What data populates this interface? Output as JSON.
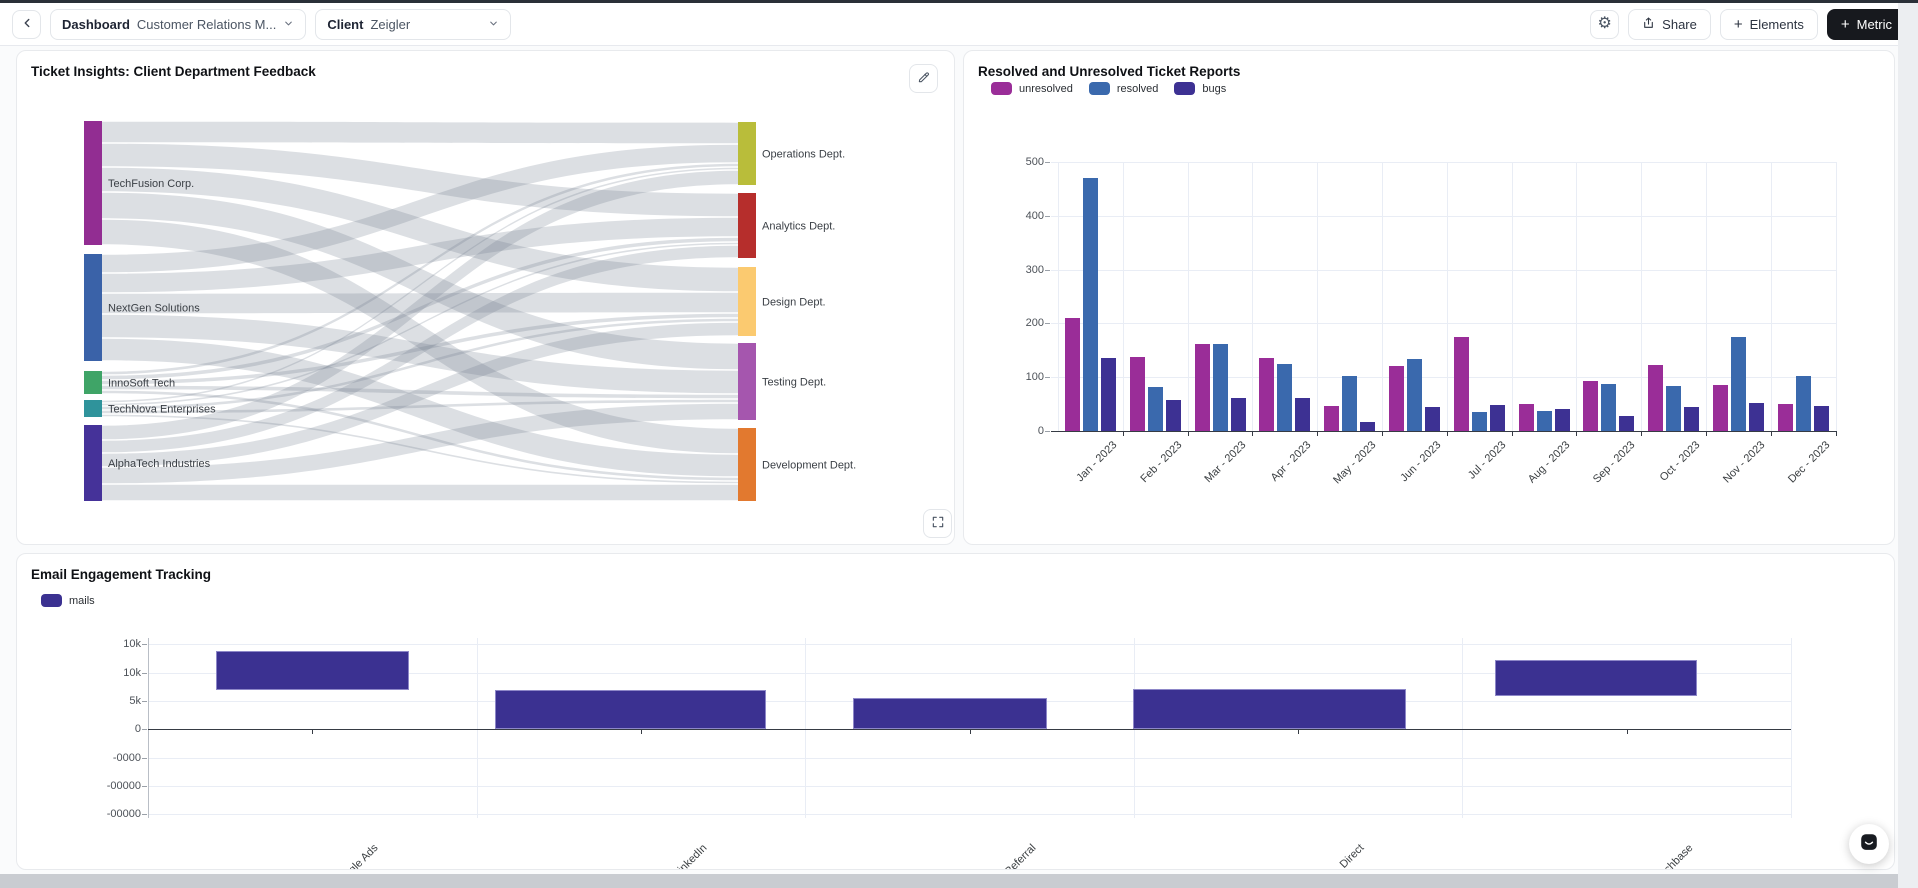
{
  "toolbar": {
    "dashboard_label": "Dashboard",
    "dashboard_value": "Customer Relations M...",
    "client_label": "Client",
    "client_value": "Zeigler",
    "share_label": "Share",
    "elements_label": "Elements",
    "metric_label": "Metric",
    "settings_icon_glyph": "⚙"
  },
  "sankey_panel": {
    "title": "Ticket Insights: Client Department Feedback",
    "chart_data": {
      "type": "sankey",
      "sources": [
        {
          "label": "TechFusion Corp.",
          "color": "#922d92",
          "total": 124
        },
        {
          "label": "NextGen Solutions",
          "color": "#3a62a8",
          "total": 107
        },
        {
          "label": "InnoSoft Tech",
          "color": "#3fa467",
          "total": 23
        },
        {
          "label": "TechNova Enterprises",
          "color": "#2f939b",
          "total": 17
        },
        {
          "label": "AlphaTech Industries",
          "color": "#453299",
          "total": 76
        }
      ],
      "targets": [
        {
          "label": "Operations Dept.",
          "color": "#b9bd3a",
          "total": 63
        },
        {
          "label": "Analytics Dept.",
          "color": "#b62e2c",
          "total": 65
        },
        {
          "label": "Design Dept.",
          "color": "#fbca70",
          "total": 69
        },
        {
          "label": "Testing Dept.",
          "color": "#a556ae",
          "total": 77
        },
        {
          "label": "Development Dept.",
          "color": "#e2792f",
          "total": 73
        }
      ],
      "links": [
        {
          "source": 0,
          "target": 0,
          "value": 22
        },
        {
          "source": 0,
          "target": 1,
          "value": 24
        },
        {
          "source": 0,
          "target": 2,
          "value": 25
        },
        {
          "source": 0,
          "target": 3,
          "value": 27
        },
        {
          "source": 0,
          "target": 4,
          "value": 26
        },
        {
          "source": 1,
          "target": 0,
          "value": 19
        },
        {
          "source": 1,
          "target": 1,
          "value": 20
        },
        {
          "source": 1,
          "target": 2,
          "value": 21
        },
        {
          "source": 1,
          "target": 3,
          "value": 24
        },
        {
          "source": 1,
          "target": 4,
          "value": 23
        },
        {
          "source": 2,
          "target": 0,
          "value": 4
        },
        {
          "source": 2,
          "target": 1,
          "value": 5
        },
        {
          "source": 2,
          "target": 2,
          "value": 5
        },
        {
          "source": 2,
          "target": 3,
          "value": 5
        },
        {
          "source": 2,
          "target": 4,
          "value": 4
        },
        {
          "source": 3,
          "target": 0,
          "value": 3
        },
        {
          "source": 3,
          "target": 1,
          "value": 3
        },
        {
          "source": 3,
          "target": 2,
          "value": 4
        },
        {
          "source": 3,
          "target": 3,
          "value": 4
        },
        {
          "source": 3,
          "target": 4,
          "value": 3
        },
        {
          "source": 4,
          "target": 0,
          "value": 15
        },
        {
          "source": 4,
          "target": 1,
          "value": 13
        },
        {
          "source": 4,
          "target": 2,
          "value": 14
        },
        {
          "source": 4,
          "target": 3,
          "value": 17
        },
        {
          "source": 4,
          "target": 4,
          "value": 17
        }
      ]
    }
  },
  "tickets_panel": {
    "title": "Resolved and Unresolved Ticket Reports",
    "legend": [
      {
        "label": "unresolved",
        "color": "#9a2d98"
      },
      {
        "label": "resolved",
        "color": "#3a69ad"
      },
      {
        "label": "bugs",
        "color": "#3d3193"
      }
    ],
    "chart_data": {
      "type": "bar",
      "categories": [
        "Jan - 2023",
        "Feb - 2023",
        "Mar - 2023",
        "Apr - 2023",
        "May - 2023",
        "Jun - 2023",
        "Jul - 2023",
        "Aug - 2023",
        "Sep - 2023",
        "Oct - 2023",
        "Nov - 2023",
        "Dec - 2023"
      ],
      "series": [
        {
          "name": "unresolved",
          "color": "#9a2d98",
          "values": [
            210,
            138,
            162,
            135,
            47,
            121,
            174,
            50,
            93,
            122,
            85,
            50
          ]
        },
        {
          "name": "resolved",
          "color": "#3a69ad",
          "values": [
            470,
            82,
            161,
            124,
            103,
            134,
            35,
            38,
            88,
            84,
            174,
            103
          ]
        },
        {
          "name": "bugs",
          "color": "#3d3193",
          "values": [
            135,
            58,
            62,
            61,
            17,
            44,
            48,
            40,
            28,
            45,
            52,
            47
          ]
        }
      ],
      "ylim": [
        0,
        500
      ],
      "yticks": [
        0,
        100,
        200,
        300,
        400,
        500
      ],
      "ytick_labels": [
        "0",
        "100",
        "200",
        "300",
        "400",
        "500"
      ],
      "grid": true,
      "legend_position": "top-left"
    }
  },
  "email_panel": {
    "title": "Email Engagement Tracking",
    "legend": [
      {
        "label": "mails",
        "color": "#3b3191"
      }
    ],
    "chart_data": {
      "type": "bar",
      "categories": [
        "Google Ads",
        "LinkedIn",
        "Referral",
        "Direct",
        "Crunchbase"
      ],
      "series": [
        {
          "name": "mails",
          "color": "#3b3191",
          "values": [
            14000,
            7000,
            5500,
            7100,
            12300
          ],
          "bar_ranges": [
            [
              7000,
              14000
            ],
            [
              0,
              7000
            ],
            [
              0,
              5500
            ],
            [
              0,
              7100
            ],
            [
              5900,
              12300
            ]
          ]
        }
      ],
      "ytick_labels": [
        "10k",
        "10k",
        "5k",
        "0",
        "-0000",
        "-00000",
        "-00000"
      ],
      "grid": true,
      "legend_position": "top-left"
    }
  }
}
